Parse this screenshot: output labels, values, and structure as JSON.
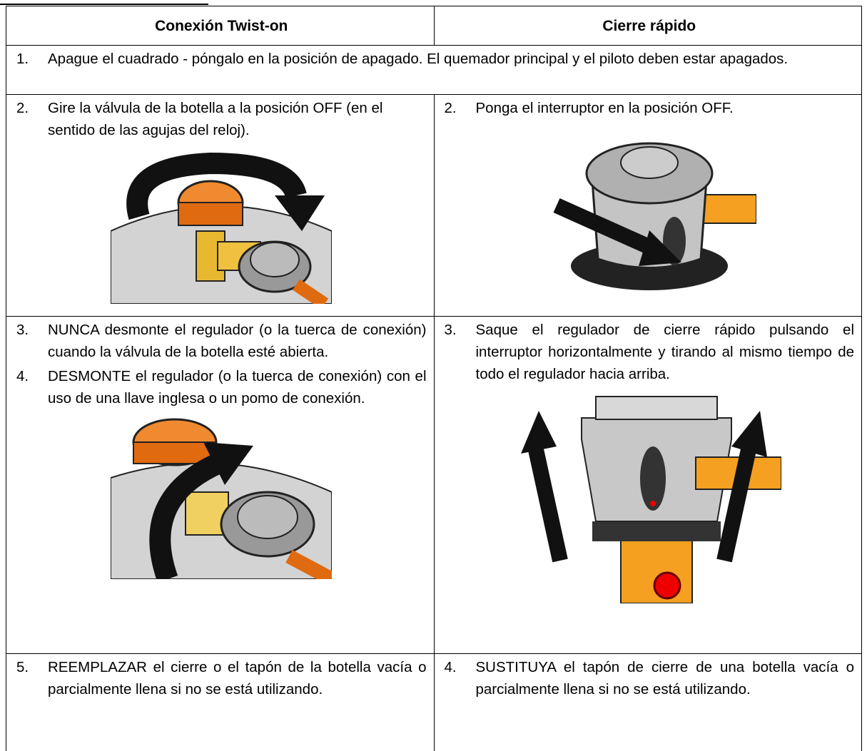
{
  "table": {
    "headers": [
      "Conexión Twist-on",
      "Cierre rápido"
    ],
    "full_row": {
      "num": "1.",
      "text": "Apague el cuadrado - póngalo en la posición de apagado. El quemador principal y el piloto deben estar apagados."
    },
    "rows": [
      {
        "left": [
          {
            "num": "2.",
            "text": "Gire la válvula de la botella a la posición OFF (en el sentido de las agujas del reloj)."
          }
        ],
        "right": [
          {
            "num": "2.",
            "text": "Ponga el interruptor en la posición OFF."
          }
        ]
      },
      {
        "left": [
          {
            "num": "3.",
            "text": "NUNCA desmonte el regulador (o la tuerca de conexión) cuando la válvula de la botella esté abierta."
          },
          {
            "num": "4.",
            "text": "DESMONTE el regulador (o la tuerca de conexión) con el uso de una llave inglesa o un pomo de conexión."
          }
        ],
        "right": [
          {
            "num": "3.",
            "text": "Saque el regulador de cierre rápido pulsando el interruptor horizontalmente y tirando al mismo tiempo de todo el regulador hacia arriba."
          }
        ]
      },
      {
        "left": [
          {
            "num": "5.",
            "text": "REEMPLAZAR el cierre o el tapón de la botella vacía o parcialmente llena si no se está utilizando."
          }
        ],
        "right": [
          {
            "num": "4.",
            "text": "SUSTITUYA el tapón de cierre de una botella vacía o parcialmente llena si no se está utilizando."
          }
        ]
      }
    ]
  }
}
